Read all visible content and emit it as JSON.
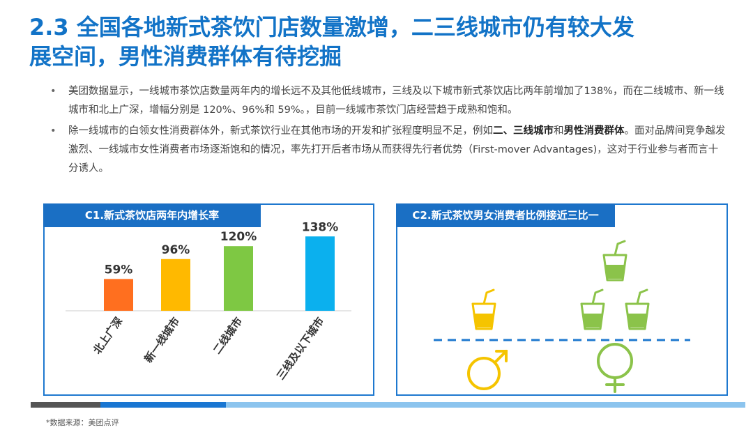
{
  "title": {
    "line1": "2.3 全国各地新式茶饮门店数量激增，二三线城市仍有较大发",
    "line2": "展空间，男性消费群体有待挖掘"
  },
  "bullets": [
    {
      "marker": "•",
      "text": "美团数据显示，一线城市茶饮店数量两年内的增长远不及其他低线城市，三线及以下城市新式茶饮店比两年前增加了138%，而在二线城市、新一线城市和北上广深，增幅分别是 120%、96%和 59%。，目前一线城市茶饮门店经营趋于成熟和饱和。"
    },
    {
      "marker": "•",
      "text_before": "除一线城市的白领女性消费群体外，新式茶饮行业在其他市场的开发和扩张程度明显不足，例如",
      "bold1": "二、三线城市",
      "text_mid": "和",
      "bold2": "男性消费群体",
      "text_after": "。面对品牌间竞争越发激烈、一线城市女性消费者市场逐渐饱和的情况，率先打开后者市场从而获得先行者优势（First-mover Advantages)，这对于行业参与者而言十分诱人。"
    }
  ],
  "left_panel": {
    "header": "C1.新式茶饮店两年内增长率"
  },
  "right_panel": {
    "header": "C2.新式茶饮男女消费者比例接近三比一",
    "male_color": "#f5c400",
    "female_color": "#8bc34a",
    "male_cups": 1,
    "female_cups": 3
  },
  "chart_data": {
    "type": "bar",
    "categories": [
      "北上广深",
      "新一线城市",
      "二线城市",
      "三线及以下城市"
    ],
    "values": [
      59,
      96,
      120,
      138
    ],
    "value_labels": [
      "59%",
      "96%",
      "120%",
      "138%"
    ],
    "colors": [
      "#ff6f1f",
      "#ffb900",
      "#7ec843",
      "#0bb0ee"
    ],
    "title": "C1.新式茶饮店两年内增长率",
    "ylim": [
      0,
      150
    ]
  },
  "source": "*数据来源：美团点评"
}
